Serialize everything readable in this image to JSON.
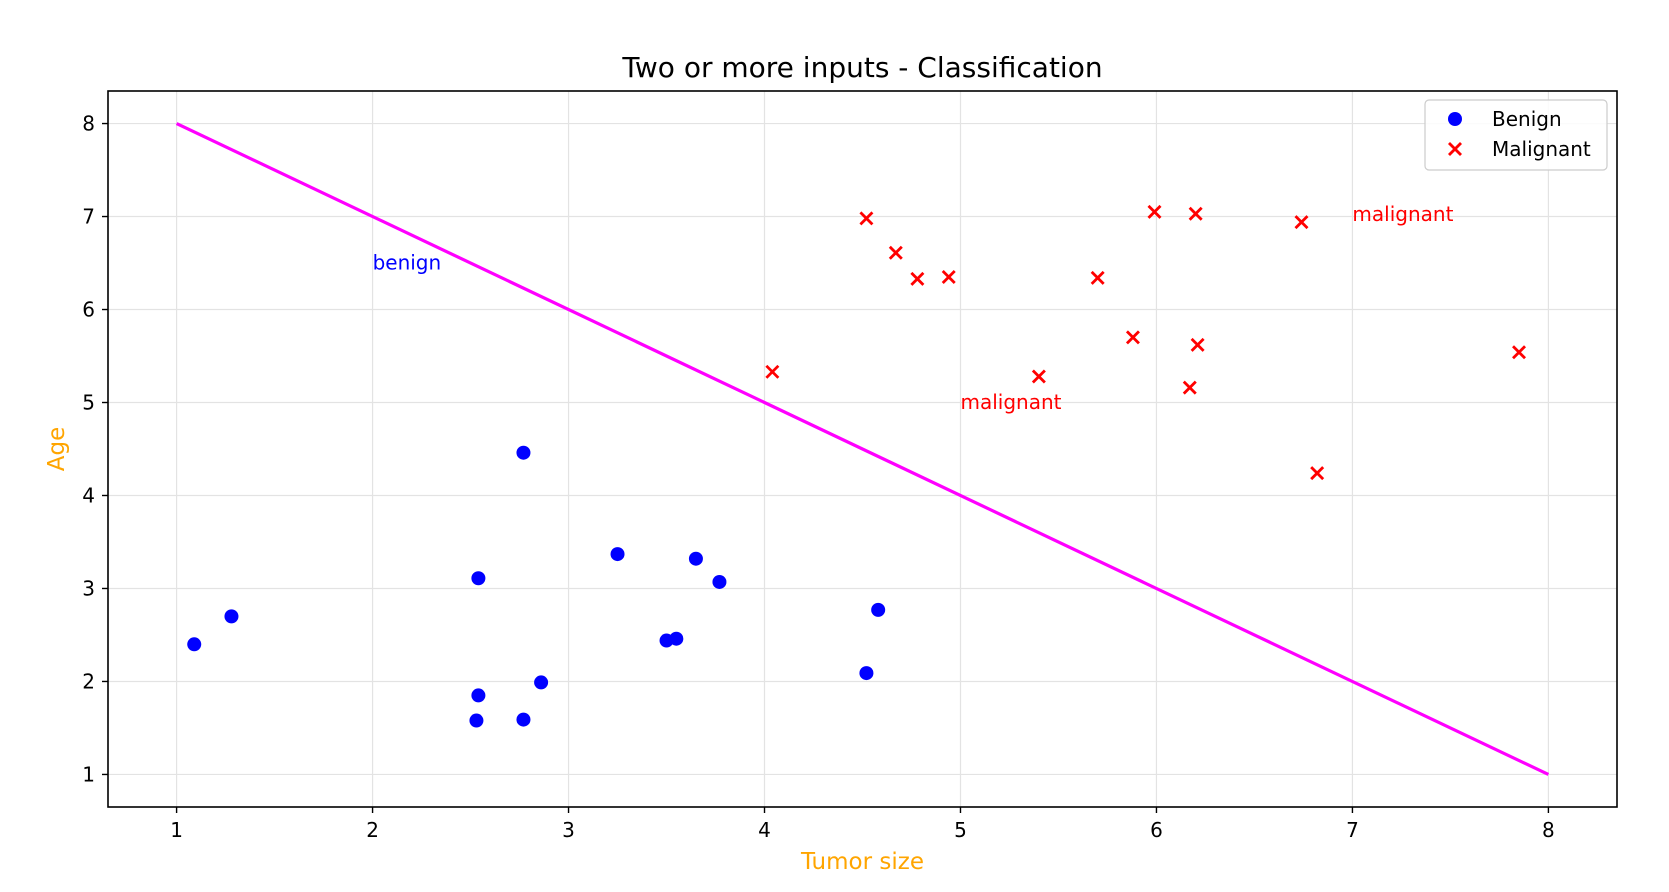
{
  "chart_data": {
    "type": "scatter",
    "title": "Two or more inputs - Classification",
    "xlabel": "Tumor size",
    "ylabel": "Age",
    "xlim": [
      0.65,
      8.35
    ],
    "ylim": [
      0.65,
      8.35
    ],
    "xticks": [
      1,
      2,
      3,
      4,
      5,
      6,
      7,
      8
    ],
    "yticks": [
      1,
      2,
      3,
      4,
      5,
      6,
      7,
      8
    ],
    "grid": true,
    "legend_position": "top-right",
    "label_color": "#FFA500",
    "series": [
      {
        "name": "Benign",
        "marker": "circle",
        "color": "#0000FF",
        "points": [
          [
            1.09,
            2.4
          ],
          [
            1.28,
            2.7
          ],
          [
            2.54,
            3.11
          ],
          [
            2.77,
            4.46
          ],
          [
            2.54,
            1.85
          ],
          [
            2.53,
            1.58
          ],
          [
            2.77,
            1.59
          ],
          [
            2.86,
            1.99
          ],
          [
            3.25,
            3.37
          ],
          [
            3.5,
            2.44
          ],
          [
            3.55,
            2.46
          ],
          [
            3.65,
            3.32
          ],
          [
            3.77,
            3.07
          ],
          [
            4.58,
            2.77
          ],
          [
            4.52,
            2.09
          ]
        ]
      },
      {
        "name": "Malignant",
        "marker": "x",
        "color": "#FF0000",
        "points": [
          [
            4.04,
            5.33
          ],
          [
            4.52,
            6.98
          ],
          [
            4.67,
            6.61
          ],
          [
            4.78,
            6.33
          ],
          [
            4.94,
            6.35
          ],
          [
            5.4,
            5.28
          ],
          [
            5.7,
            6.34
          ],
          [
            5.88,
            5.7
          ],
          [
            5.99,
            7.05
          ],
          [
            6.2,
            7.03
          ],
          [
            6.21,
            5.62
          ],
          [
            6.17,
            5.16
          ],
          [
            6.74,
            6.94
          ],
          [
            6.82,
            4.24
          ],
          [
            7.85,
            5.54
          ]
        ]
      }
    ],
    "lines": [
      {
        "color": "#FF00FF",
        "points": [
          [
            1,
            8
          ],
          [
            8,
            1
          ]
        ]
      }
    ],
    "annotations": [
      {
        "text": "benign",
        "x": 2.0,
        "y": 6.43,
        "color": "#0000FF"
      },
      {
        "text": "malignant",
        "x": 5.0,
        "y": 4.93,
        "color": "#FF0000"
      },
      {
        "text": "malignant",
        "x": 7.0,
        "y": 6.95,
        "color": "#FF0000"
      }
    ]
  }
}
